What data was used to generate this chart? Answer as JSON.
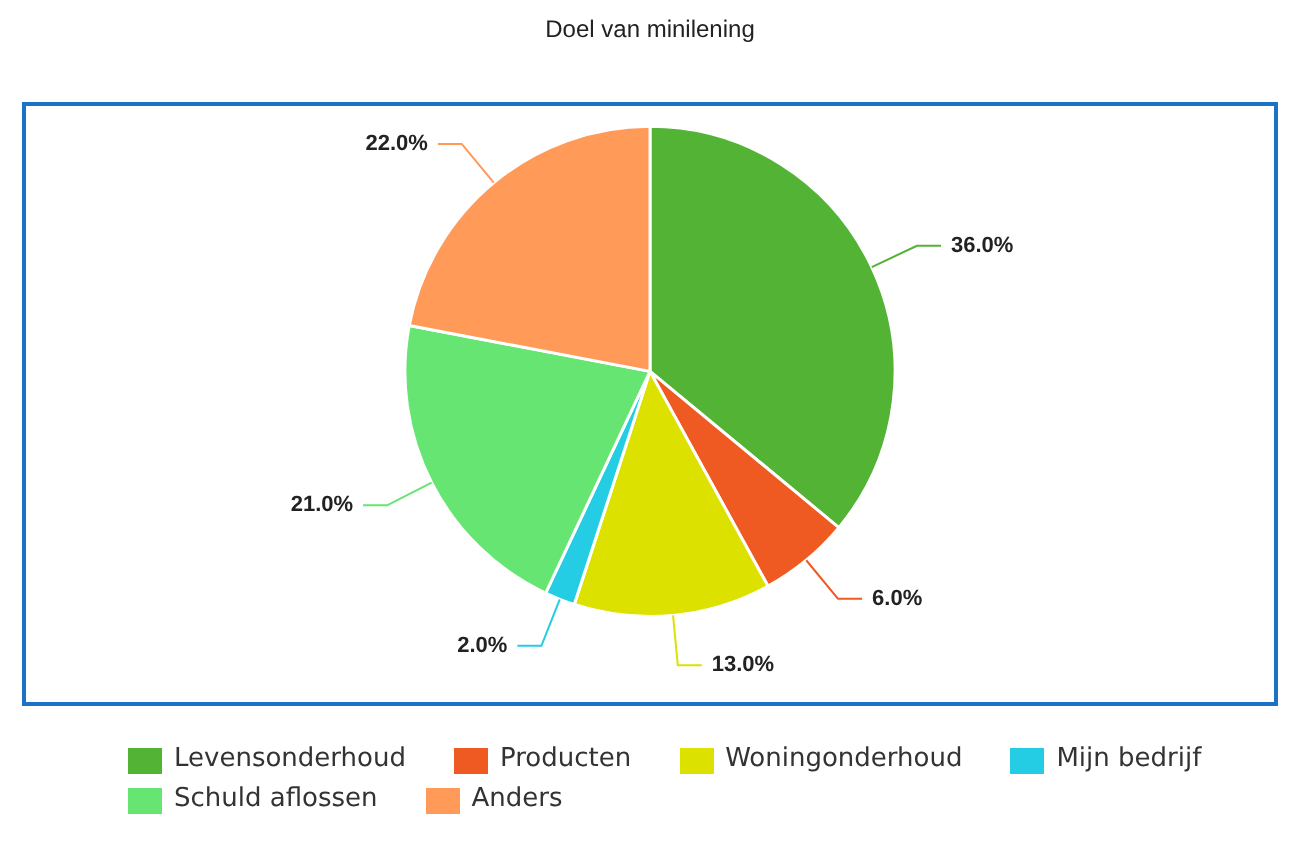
{
  "chart_data": {
    "type": "pie",
    "title": "Doel van minilening",
    "categories": [
      "Levensonderhoud",
      "Producten",
      "Woningonderhoud",
      "Mijn bedrijf",
      "Schuld aflossen",
      "Anders"
    ],
    "values": [
      36,
      6,
      13,
      2,
      21,
      22
    ],
    "colors": [
      "#53b335",
      "#ee5a22",
      "#dde100",
      "#24cde3",
      "#66e572",
      "#ff9a59"
    ],
    "value_labels": [
      "36.0%",
      "6.0%",
      "13.0%",
      "2.0%",
      "21.0%",
      "22.0%"
    ],
    "legend": "bottom"
  }
}
